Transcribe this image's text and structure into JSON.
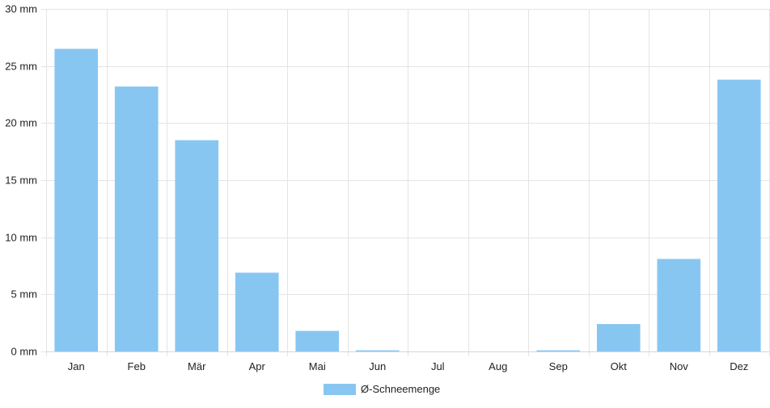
{
  "chart_data": {
    "type": "bar",
    "categories": [
      "Jan",
      "Feb",
      "Mär",
      "Apr",
      "Mai",
      "Jun",
      "Jul",
      "Aug",
      "Sep",
      "Okt",
      "Nov",
      "Dez"
    ],
    "series": [
      {
        "name": "Ø-Schneemenge",
        "values": [
          26.5,
          23.2,
          18.5,
          6.9,
          1.8,
          0.1,
          0,
          0,
          0.1,
          2.4,
          8.1,
          23.8
        ],
        "color": "#88c6f2"
      }
    ],
    "ylim": [
      0,
      30
    ],
    "yticks": [
      {
        "value": 0,
        "label": "0 mm"
      },
      {
        "value": 5,
        "label": "5 mm"
      },
      {
        "value": 10,
        "label": "10 mm"
      },
      {
        "value": 15,
        "label": "15 mm"
      },
      {
        "value": 20,
        "label": "20 mm"
      },
      {
        "value": 25,
        "label": "25 mm"
      },
      {
        "value": 30,
        "label": "30 mm"
      }
    ],
    "grid": true,
    "grid_color": "#e4e4e4",
    "legend_position": "bottom"
  }
}
